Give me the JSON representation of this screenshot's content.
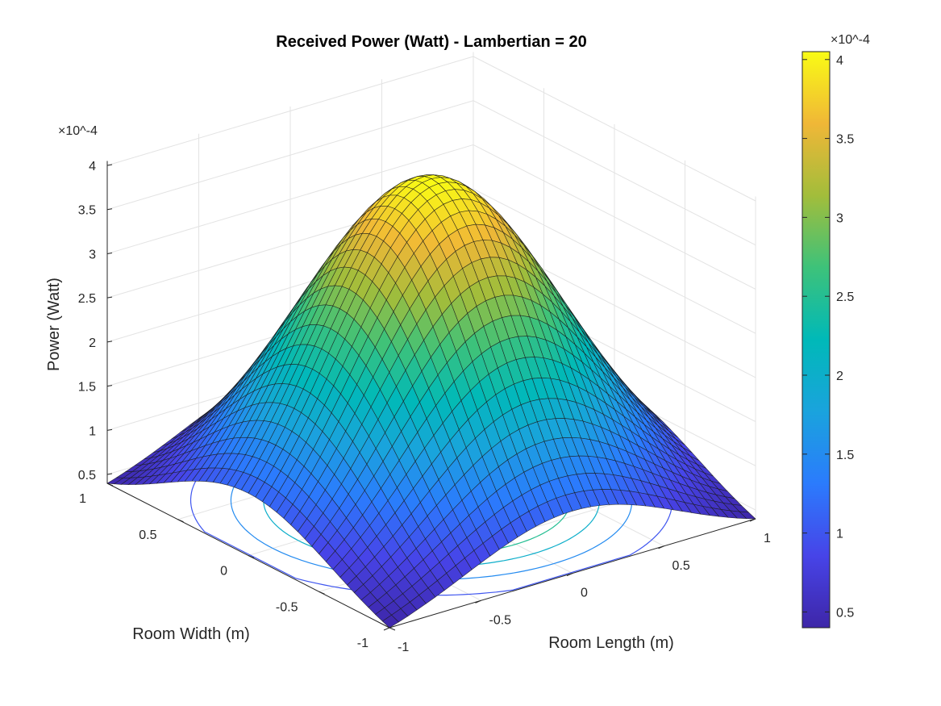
{
  "chart_data": {
    "type": "surface",
    "title": "Received Power (Watt) - Lambertian = 20",
    "xlabel": "Room Length (m)",
    "ylabel": "Room Width (m)",
    "zlabel": "Power (Watt)",
    "xlim": [
      -1,
      1
    ],
    "ylim": [
      -1,
      1
    ],
    "zlim": [
      0.4,
      4.05
    ],
    "z_multiplier": "×10^-4",
    "x_ticks": [
      "-1",
      "-0.5",
      "0",
      "0.5",
      "1"
    ],
    "y_ticks": [
      "-1",
      "-0.5",
      "0",
      "0.5",
      "1"
    ],
    "z_ticks": [
      "0.5",
      "1",
      "1.5",
      "2",
      "2.5",
      "3",
      "3.5",
      "4"
    ],
    "grid": true,
    "mesh_points": 41,
    "peak_value": 4.05,
    "corner_value": 0.4,
    "contour_levels": [
      1,
      1.5,
      2,
      2.5
    ],
    "colormap": "parula",
    "colorbar": {
      "position": "right",
      "multiplier": "×10^-4",
      "range": [
        0.4,
        4.05
      ],
      "ticks": [
        "0.5",
        "1",
        "1.5",
        "2",
        "2.5",
        "3",
        "3.5",
        "4"
      ]
    }
  }
}
